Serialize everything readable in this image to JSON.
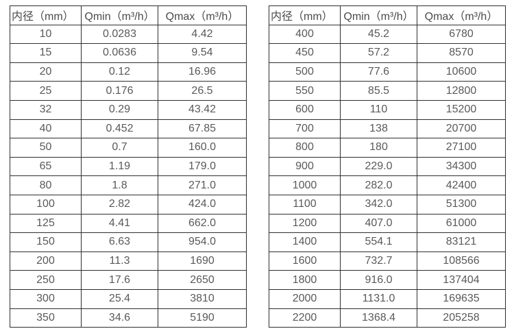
{
  "colors": {
    "background": "#ffffff",
    "border": "#2e2e2e",
    "text": "#595959",
    "header_text": "#4a4a4a"
  },
  "tables": [
    {
      "name": "flow-rate-table-small-diameters",
      "headers": [
        "内径（mm）",
        "Qmin（m³/h）",
        "Qmax（m³/h）"
      ],
      "rows": [
        [
          "10",
          "0.0283",
          "4.42"
        ],
        [
          "15",
          "0.0636",
          "9.54"
        ],
        [
          "20",
          "0.12",
          "16.96"
        ],
        [
          "25",
          "0.176",
          "26.5"
        ],
        [
          "32",
          "0.29",
          "43.42"
        ],
        [
          "40",
          "0.452",
          "67.85"
        ],
        [
          "50",
          "0.7",
          "160.0"
        ],
        [
          "65",
          "1.19",
          "179.0"
        ],
        [
          "80",
          "1.8",
          "271.0"
        ],
        [
          "100",
          "2.82",
          "424.0"
        ],
        [
          "125",
          "4.41",
          "662.0"
        ],
        [
          "150",
          "6.63",
          "954.0"
        ],
        [
          "200",
          "11.3",
          "1690"
        ],
        [
          "250",
          "17.6",
          "2650"
        ],
        [
          "300",
          "25.4",
          "3810"
        ],
        [
          "350",
          "34.6",
          "5190"
        ]
      ]
    },
    {
      "name": "flow-rate-table-large-diameters",
      "headers": [
        "内径（mm）",
        "Qmin（m³/h）",
        "Qmax（m³/h）"
      ],
      "rows": [
        [
          "400",
          "45.2",
          "6780"
        ],
        [
          "450",
          "57.2",
          "8570"
        ],
        [
          "500",
          "77.6",
          "10600"
        ],
        [
          "550",
          "85.5",
          "12800"
        ],
        [
          "600",
          "110",
          "15200"
        ],
        [
          "700",
          "138",
          "20700"
        ],
        [
          "800",
          "180",
          "27100"
        ],
        [
          "900",
          "229.0",
          "34300"
        ],
        [
          "1000",
          "282.0",
          "42400"
        ],
        [
          "1100",
          "342.0",
          "51300"
        ],
        [
          "1200",
          "407.0",
          "61000"
        ],
        [
          "1400",
          "554.1",
          "83121"
        ],
        [
          "1600",
          "732.7",
          "108566"
        ],
        [
          "1800",
          "916.0",
          "137404"
        ],
        [
          "2000",
          "1131.0",
          "169635"
        ],
        [
          "2200",
          "1368.4",
          "205258"
        ]
      ]
    }
  ]
}
